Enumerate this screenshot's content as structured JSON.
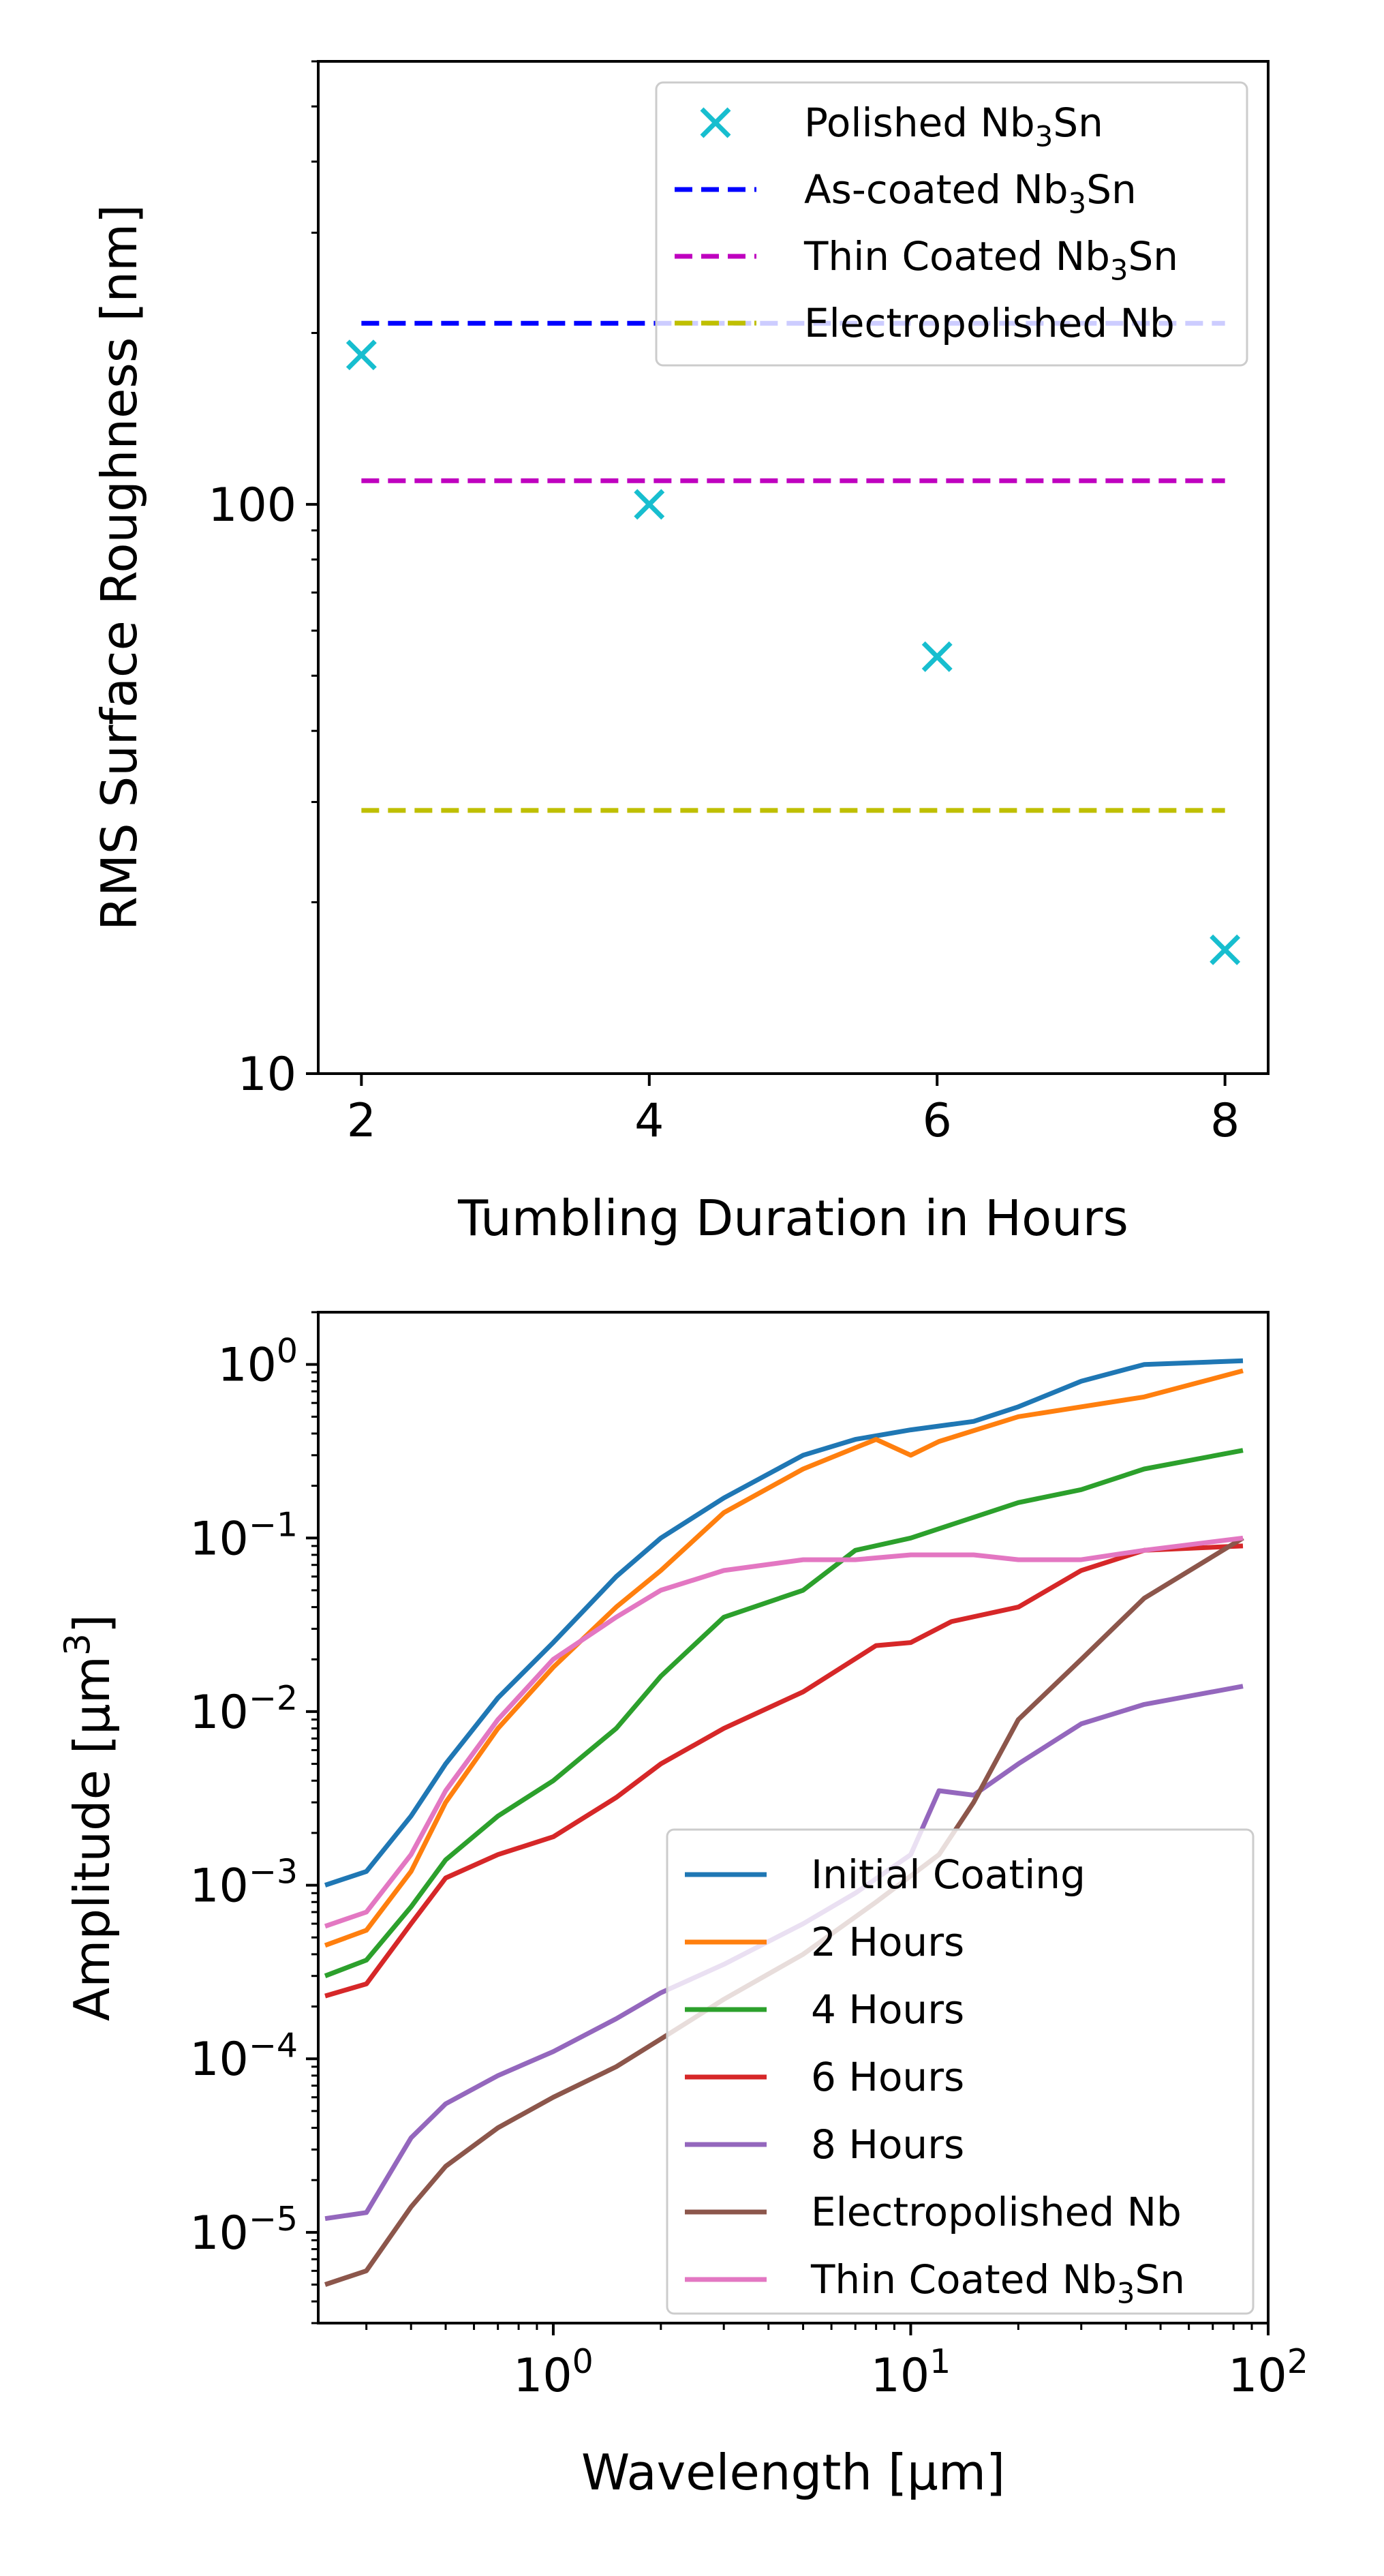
{
  "chart_data": [
    {
      "type": "scatter",
      "xlabel": "Tumbling Duration in Hours",
      "ylabel": "RMS Surface Roughness [nm]",
      "yscale": "log",
      "xlim": [
        1.7,
        8.3
      ],
      "ylim": [
        10,
        600
      ],
      "xticks": [
        2,
        4,
        6,
        8
      ],
      "xtick_labels": [
        "2",
        "4",
        "6",
        "8"
      ],
      "yticks": [
        10,
        100
      ],
      "ytick_labels": [
        "10",
        "100"
      ],
      "legend_position": "top-right",
      "grid": false,
      "series": [
        {
          "name": "Polished Nb3Sn",
          "name_parts": [
            "Polished Nb",
            "3",
            "Sn"
          ],
          "kind": "scatter",
          "marker": "x",
          "color": "#17becf",
          "x": [
            2,
            4,
            6,
            8
          ],
          "y": [
            183,
            100,
            54,
            16.5
          ]
        },
        {
          "name": "As-coated Nb3Sn",
          "name_parts": [
            "As-coated Nb",
            "3",
            "Sn"
          ],
          "kind": "hline",
          "color": "#0000ff",
          "y": 208,
          "x": [
            2,
            8
          ]
        },
        {
          "name": "Thin Coated Nb3Sn",
          "name_parts": [
            "Thin Coated Nb",
            "3",
            "Sn"
          ],
          "kind": "hline",
          "color": "#bf00bf",
          "y": 110,
          "x": [
            2,
            8
          ]
        },
        {
          "name": "Electropolished Nb",
          "name_parts": [
            "Electropolished Nb"
          ],
          "kind": "hline",
          "color": "#bfbf00",
          "y": 29,
          "x": [
            2,
            8
          ]
        }
      ]
    },
    {
      "type": "line",
      "xlabel": "Wavelength [µm]",
      "ylabel_parts": [
        "Amplitude [µm",
        "3",
        "]"
      ],
      "xscale": "log",
      "yscale": "log",
      "xlim": [
        0.22,
        100
      ],
      "ylim": [
        3e-06,
        2.0
      ],
      "xticks": [
        1,
        10,
        100
      ],
      "xtick_labels": [
        [
          "10",
          "0"
        ],
        [
          "10",
          "1"
        ],
        [
          "10",
          "2"
        ]
      ],
      "yticks": [
        1e-05,
        0.0001,
        0.001,
        0.01,
        0.1,
        1
      ],
      "ytick_labels": [
        [
          "10",
          "−5"
        ],
        [
          "10",
          "−4"
        ],
        [
          "10",
          "−3"
        ],
        [
          "10",
          "−2"
        ],
        [
          "10",
          "−1"
        ],
        [
          "10",
          "0"
        ]
      ],
      "legend_position": "lower-right",
      "grid": false,
      "series": [
        {
          "name": "Initial Coating",
          "name_parts": [
            "Initial Coating"
          ],
          "color": "#1f77b4",
          "x": [
            0.23,
            0.3,
            0.4,
            0.5,
            0.7,
            1.0,
            1.5,
            2.0,
            3.0,
            5.0,
            7.0,
            10,
            15,
            20,
            30,
            45,
            85
          ],
          "y": [
            0.001,
            0.0012,
            0.0025,
            0.005,
            0.012,
            0.025,
            0.06,
            0.1,
            0.17,
            0.3,
            0.37,
            0.42,
            0.47,
            0.57,
            0.8,
            1.0,
            1.05
          ]
        },
        {
          "name": "2 Hours",
          "name_parts": [
            "2 Hours"
          ],
          "color": "#ff7f0e",
          "x": [
            0.23,
            0.3,
            0.4,
            0.5,
            0.7,
            1.0,
            1.5,
            2.0,
            3.0,
            5.0,
            8.0,
            10,
            12,
            20,
            45,
            85
          ],
          "y": [
            0.00045,
            0.00055,
            0.0012,
            0.003,
            0.008,
            0.018,
            0.04,
            0.065,
            0.14,
            0.25,
            0.37,
            0.3,
            0.36,
            0.5,
            0.65,
            0.92
          ]
        },
        {
          "name": "4 Hours",
          "name_parts": [
            "4 Hours"
          ],
          "color": "#2ca02c",
          "x": [
            0.23,
            0.3,
            0.4,
            0.5,
            0.7,
            1.0,
            1.5,
            2.0,
            3.0,
            5.0,
            7.0,
            10,
            20,
            30,
            45,
            85
          ],
          "y": [
            0.0003,
            0.00037,
            0.00075,
            0.0014,
            0.0025,
            0.004,
            0.008,
            0.016,
            0.035,
            0.05,
            0.085,
            0.1,
            0.16,
            0.19,
            0.25,
            0.32
          ]
        },
        {
          "name": "6 Hours",
          "name_parts": [
            "6 Hours"
          ],
          "color": "#d62728",
          "x": [
            0.23,
            0.3,
            0.4,
            0.5,
            0.7,
            1.0,
            1.5,
            2.0,
            3.0,
            5.0,
            8.0,
            10,
            13,
            20,
            30,
            45,
            85
          ],
          "y": [
            0.00023,
            0.00027,
            0.0006,
            0.0011,
            0.0015,
            0.0019,
            0.0032,
            0.005,
            0.008,
            0.013,
            0.024,
            0.025,
            0.033,
            0.04,
            0.065,
            0.085,
            0.09
          ]
        },
        {
          "name": "8 Hours",
          "name_parts": [
            "8 Hours"
          ],
          "color": "#9467bd",
          "x": [
            0.23,
            0.3,
            0.4,
            0.5,
            0.7,
            1.0,
            1.5,
            2.0,
            3.0,
            5.0,
            7.0,
            10,
            12,
            15,
            20,
            30,
            45,
            85
          ],
          "y": [
            1.2e-05,
            1.3e-05,
            3.5e-05,
            5.5e-05,
            8e-05,
            0.00011,
            0.00017,
            0.00024,
            0.00035,
            0.0006,
            0.0009,
            0.0015,
            0.0035,
            0.0033,
            0.005,
            0.0085,
            0.011,
            0.014
          ]
        },
        {
          "name": "Electropolished Nb",
          "name_parts": [
            "Electropolished Nb"
          ],
          "color": "#8c564b",
          "x": [
            0.23,
            0.3,
            0.4,
            0.5,
            0.7,
            1.0,
            1.5,
            2.0,
            3.0,
            5.0,
            8.0,
            12,
            15,
            20,
            30,
            45,
            85
          ],
          "y": [
            5e-06,
            6e-06,
            1.4e-05,
            2.4e-05,
            4e-05,
            6e-05,
            9e-05,
            0.00013,
            0.00022,
            0.0004,
            0.0008,
            0.0015,
            0.003,
            0.009,
            0.02,
            0.045,
            0.1
          ]
        },
        {
          "name": "Thin Coated Nb3Sn",
          "name_parts": [
            "Thin Coated Nb",
            "3",
            "Sn"
          ],
          "color": "#e377c2",
          "x": [
            0.23,
            0.3,
            0.4,
            0.5,
            0.7,
            1.0,
            1.5,
            2.0,
            3.0,
            5.0,
            7.0,
            10,
            15,
            20,
            30,
            45,
            85
          ],
          "y": [
            0.00058,
            0.0007,
            0.0015,
            0.0035,
            0.009,
            0.02,
            0.035,
            0.05,
            0.065,
            0.075,
            0.075,
            0.08,
            0.08,
            0.075,
            0.075,
            0.085,
            0.1
          ]
        }
      ]
    }
  ]
}
